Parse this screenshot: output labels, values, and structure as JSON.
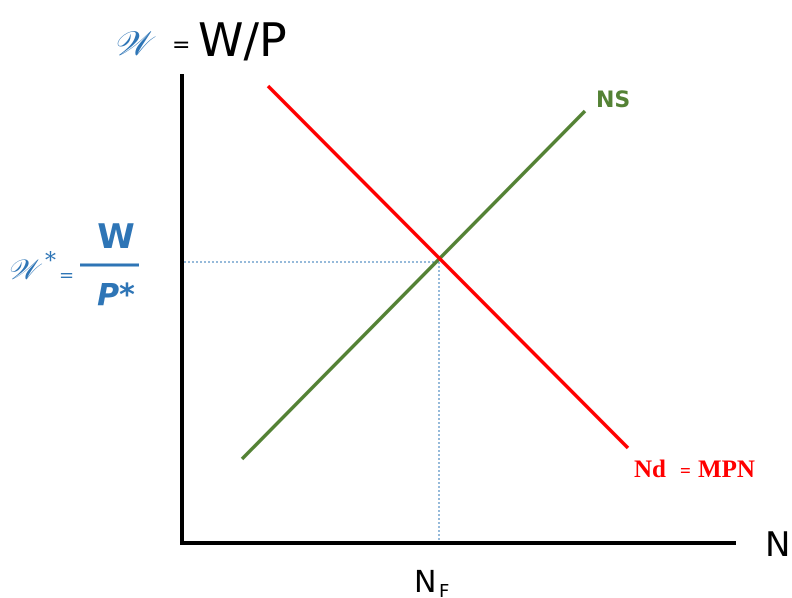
{
  "title": {
    "script_symbol": "𝒲",
    "equals": "=",
    "definition": "W/P"
  },
  "equilibrium_wage": {
    "script_symbol": "𝒲",
    "star": "*",
    "equals": "=",
    "numerator": "W",
    "denominator": "P*"
  },
  "x_axis": {
    "label": "N",
    "tick_main": "N",
    "tick_sub": "F"
  },
  "curves": {
    "supply_label": "NS",
    "demand_label_left": "Nd",
    "demand_label_eq": "=",
    "demand_label_right": "MPN"
  },
  "colors": {
    "supply": "#548235",
    "demand": "#ff0000",
    "guide": "#2e75b6",
    "accent": "#2e75b6"
  }
}
